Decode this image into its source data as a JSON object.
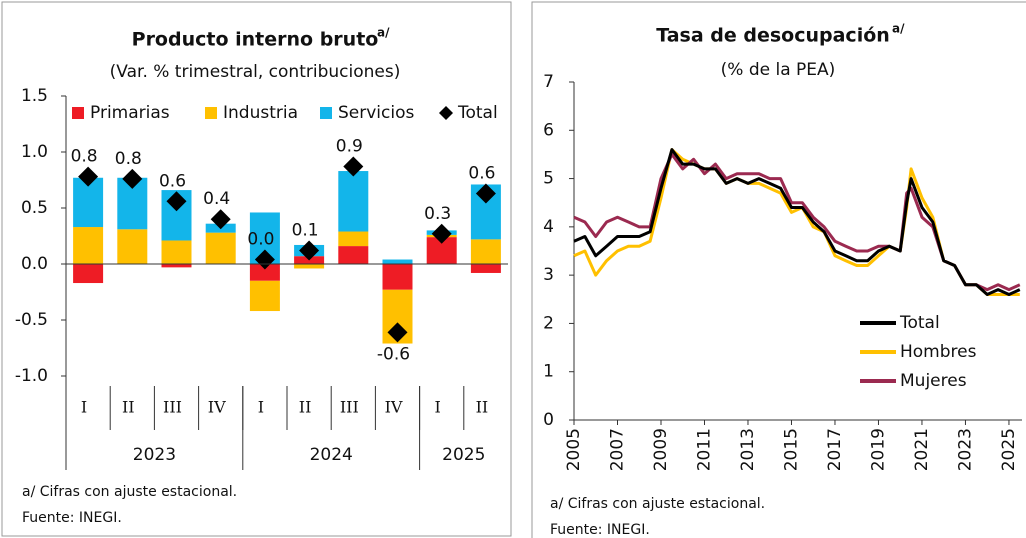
{
  "chart_data": [
    {
      "type": "bar",
      "stacked": true,
      "title": "Producto interno bruto",
      "title_note": "a/",
      "subtitle": "(Var. % trimestral, contribuciones)",
      "categories": [
        "I",
        "II",
        "III",
        "IV",
        "I",
        "II",
        "III",
        "IV",
        "I",
        "II"
      ],
      "groups": [
        {
          "label": "2023",
          "count": 4
        },
        {
          "label": "2024",
          "count": 4
        },
        {
          "label": "2025",
          "count": 2
        }
      ],
      "series": [
        {
          "name": "Primarias",
          "color": "#ee1c25",
          "values": [
            -0.17,
            0,
            -0.03,
            0,
            -0.15,
            0.07,
            0.16,
            -0.23,
            0.24,
            -0.08
          ]
        },
        {
          "name": "Industria",
          "color": "#ffc000",
          "values": [
            0.33,
            0.31,
            0.21,
            0.28,
            -0.27,
            -0.04,
            0.13,
            -0.48,
            0.02,
            0.22
          ]
        },
        {
          "name": "Servicios",
          "color": "#13b5ea",
          "values": [
            0.44,
            0.46,
            0.45,
            0.08,
            0.46,
            0.1,
            0.54,
            0.04,
            0.04,
            0.49
          ]
        },
        {
          "name": "Total",
          "color": "#000000",
          "marker": "diamond",
          "values": [
            0.78,
            0.76,
            0.56,
            0.4,
            0.04,
            0.12,
            0.87,
            -0.61,
            0.27,
            0.63
          ],
          "value_labels": [
            "0.8",
            "0.8",
            "0.6",
            "0.4",
            "0.0",
            "0.1",
            "0.9",
            "-0.6",
            "0.3",
            "0.6"
          ]
        }
      ],
      "ylim": [
        -1,
        1.5
      ],
      "yticks": [
        {
          "value": -1,
          "label": "-1.0"
        },
        -0.5,
        {
          "value": 0,
          "label": "0.0"
        },
        0.5,
        {
          "value": 1,
          "label": "1.0"
        },
        1.5
      ],
      "grid": false,
      "footnote": "a/ Cifras con ajuste estacional.",
      "source": "Fuente: INEGI."
    },
    {
      "type": "line",
      "title": "Tasa de desocupación",
      "title_note": "a/",
      "subtitle": "(% de la PEA)",
      "x": [
        2005,
        2005.5,
        2006,
        2006.5,
        2007,
        2007.5,
        2008,
        2008.5,
        2009,
        2009.5,
        2010,
        2010.5,
        2011,
        2011.5,
        2012,
        2012.5,
        2013,
        2013.5,
        2014,
        2014.5,
        2015,
        2015.5,
        2016,
        2016.5,
        2017,
        2017.5,
        2018,
        2018.5,
        2019,
        2019.5,
        2020,
        2020.3,
        2020.5,
        2021,
        2021.5,
        2022,
        2022.5,
        2023,
        2023.5,
        2024,
        2024.5,
        2025,
        2025.5
      ],
      "series": [
        {
          "name": "Total",
          "color": "#000000",
          "values": [
            3.7,
            3.8,
            3.4,
            3.6,
            3.8,
            3.8,
            3.8,
            3.9,
            4.8,
            5.6,
            5.3,
            5.3,
            5.2,
            5.2,
            4.9,
            5.0,
            4.9,
            5.0,
            4.9,
            4.8,
            4.4,
            4.4,
            4.1,
            3.9,
            3.5,
            3.4,
            3.3,
            3.3,
            3.5,
            3.6,
            3.5,
            4.5,
            5.0,
            4.4,
            4.1,
            3.3,
            3.2,
            2.8,
            2.8,
            2.6,
            2.7,
            2.6,
            2.7
          ]
        },
        {
          "name": "Hombres",
          "color": "#ffc000",
          "values": [
            3.4,
            3.5,
            3.0,
            3.3,
            3.5,
            3.6,
            3.6,
            3.7,
            4.6,
            5.6,
            5.4,
            5.3,
            5.2,
            5.2,
            4.9,
            5.0,
            4.9,
            4.9,
            4.8,
            4.7,
            4.3,
            4.4,
            4.0,
            3.9,
            3.4,
            3.3,
            3.2,
            3.2,
            3.4,
            3.6,
            3.5,
            4.4,
            5.2,
            4.6,
            4.2,
            3.3,
            3.2,
            2.8,
            2.8,
            2.6,
            2.6,
            2.6,
            2.6
          ]
        },
        {
          "name": "Mujeres",
          "color": "#9b2a50",
          "values": [
            4.2,
            4.1,
            3.8,
            4.1,
            4.2,
            4.1,
            4.0,
            4.0,
            5.0,
            5.5,
            5.2,
            5.4,
            5.1,
            5.3,
            5.0,
            5.1,
            5.1,
            5.1,
            5.0,
            5.0,
            4.5,
            4.5,
            4.2,
            4.0,
            3.7,
            3.6,
            3.5,
            3.5,
            3.6,
            3.6,
            3.5,
            4.7,
            4.8,
            4.2,
            4.0,
            3.3,
            3.2,
            2.8,
            2.8,
            2.7,
            2.8,
            2.7,
            2.8
          ]
        }
      ],
      "xlim": [
        2005,
        2025.6
      ],
      "xticks": [
        2005,
        2007,
        2009,
        2011,
        2013,
        2015,
        2017,
        2019,
        2021,
        2023,
        2025
      ],
      "ylim": [
        0,
        7
      ],
      "yticks": [
        0,
        1,
        2,
        3,
        4,
        5,
        6,
        7
      ],
      "grid": false,
      "legend": "right",
      "footnote": "a/ Cifras con ajuste estacional.",
      "source": "Fuente: INEGI."
    }
  ]
}
